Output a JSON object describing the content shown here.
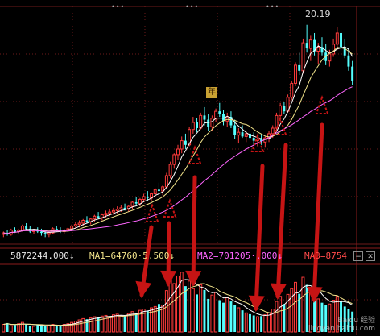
{
  "chart_data": {
    "type": "candlestick",
    "title": "",
    "price_high_label": "20.19",
    "info_bar": {
      "volume": "5872244.000↓",
      "ma1": "MA1=64760·5.500↓",
      "ma2": "MA2=701205·.000↓",
      "ma3": "MA3=8754"
    },
    "badge": "年",
    "price_range": [
      4.5,
      21.5
    ],
    "volume_range": [
      0,
      10000000
    ],
    "candles": [
      [
        5.2,
        5.4,
        5.0,
        5.3
      ],
      [
        5.3,
        5.5,
        5.1,
        5.2
      ],
      [
        5.2,
        5.6,
        5.1,
        5.5
      ],
      [
        5.5,
        5.7,
        5.3,
        5.4
      ],
      [
        5.4,
        5.6,
        5.2,
        5.5
      ],
      [
        5.5,
        5.9,
        5.4,
        5.8
      ],
      [
        5.8,
        6.0,
        5.5,
        5.6
      ],
      [
        5.6,
        5.8,
        5.3,
        5.4
      ],
      [
        5.4,
        5.6,
        5.2,
        5.5
      ],
      [
        5.5,
        5.7,
        5.3,
        5.4
      ],
      [
        5.4,
        5.6,
        5.1,
        5.3
      ],
      [
        5.3,
        5.5,
        5.0,
        5.2
      ],
      [
        5.2,
        5.4,
        5.0,
        5.3
      ],
      [
        5.3,
        5.7,
        5.2,
        5.6
      ],
      [
        5.6,
        5.8,
        5.4,
        5.5
      ],
      [
        5.5,
        5.7,
        5.3,
        5.4
      ],
      [
        5.4,
        5.6,
        5.2,
        5.5
      ],
      [
        5.5,
        5.7,
        5.4,
        5.6
      ],
      [
        5.6,
        5.9,
        5.5,
        5.8
      ],
      [
        5.8,
        6.1,
        5.6,
        5.9
      ],
      [
        5.9,
        6.2,
        5.7,
        6.0
      ],
      [
        6.0,
        6.3,
        5.8,
        6.2
      ],
      [
        6.2,
        6.5,
        6.0,
        6.1
      ],
      [
        6.1,
        6.4,
        5.9,
        6.3
      ],
      [
        6.3,
        6.6,
        6.1,
        6.5
      ],
      [
        6.5,
        6.8,
        6.3,
        6.4
      ],
      [
        6.4,
        6.7,
        6.2,
        6.6
      ],
      [
        6.6,
        6.9,
        6.4,
        6.7
      ],
      [
        6.7,
        7.0,
        6.5,
        6.8
      ],
      [
        6.8,
        7.1,
        6.6,
        6.9
      ],
      [
        6.9,
        7.2,
        6.7,
        7.0
      ],
      [
        7.0,
        7.3,
        6.8,
        7.1
      ],
      [
        7.1,
        7.4,
        6.9,
        7.0
      ],
      [
        7.0,
        7.3,
        6.8,
        7.2
      ],
      [
        7.2,
        7.6,
        7.0,
        7.5
      ],
      [
        7.5,
        7.9,
        7.3,
        7.4
      ],
      [
        7.4,
        7.8,
        7.2,
        7.7
      ],
      [
        7.7,
        8.1,
        7.5,
        7.9
      ],
      [
        7.9,
        8.3,
        7.6,
        7.8
      ],
      [
        7.8,
        8.2,
        7.6,
        8.1
      ],
      [
        8.1,
        8.5,
        7.9,
        8.4
      ],
      [
        8.4,
        8.9,
        8.2,
        8.3
      ],
      [
        8.3,
        8.7,
        8.0,
        8.6
      ],
      [
        8.6,
        9.6,
        8.5,
        9.4
      ],
      [
        9.4,
        10.4,
        9.2,
        10.2
      ],
      [
        10.2,
        11.0,
        9.9,
        10.9
      ],
      [
        10.9,
        11.6,
        10.5,
        11.3
      ],
      [
        11.3,
        12.2,
        11.0,
        11.9
      ],
      [
        11.9,
        12.4,
        11.3,
        11.6
      ],
      [
        11.6,
        12.9,
        11.5,
        12.7
      ],
      [
        12.7,
        13.6,
        12.4,
        13.2
      ],
      [
        13.2,
        13.5,
        12.5,
        12.8
      ],
      [
        12.8,
        13.9,
        12.7,
        13.7
      ],
      [
        13.7,
        14.3,
        13.0,
        13.4
      ],
      [
        13.4,
        13.8,
        12.6,
        12.9
      ],
      [
        12.9,
        13.7,
        12.6,
        13.5
      ],
      [
        13.5,
        14.2,
        13.2,
        14.0
      ],
      [
        14.0,
        14.6,
        13.6,
        13.8
      ],
      [
        13.8,
        14.1,
        13.0,
        13.3
      ],
      [
        13.3,
        13.9,
        12.9,
        13.6
      ],
      [
        13.6,
        14.0,
        12.8,
        13.0
      ],
      [
        13.0,
        13.4,
        12.0,
        12.3
      ],
      [
        12.3,
        12.8,
        11.7,
        12.5
      ],
      [
        12.5,
        13.0,
        12.1,
        12.2
      ],
      [
        12.2,
        12.6,
        11.8,
        12.4
      ],
      [
        12.4,
        12.7,
        11.9,
        12.1
      ],
      [
        12.1,
        12.5,
        11.6,
        11.9
      ],
      [
        11.9,
        12.3,
        11.5,
        12.0
      ],
      [
        12.0,
        12.4,
        11.6,
        11.8
      ],
      [
        11.8,
        12.2,
        11.4,
        12.1
      ],
      [
        12.1,
        12.6,
        11.8,
        12.4
      ],
      [
        12.4,
        13.0,
        12.1,
        12.8
      ],
      [
        12.8,
        13.9,
        12.6,
        13.7
      ],
      [
        13.7,
        14.6,
        13.3,
        14.4
      ],
      [
        14.4,
        14.7,
        13.8,
        14.0
      ],
      [
        14.0,
        15.2,
        13.9,
        15.0
      ],
      [
        15.0,
        16.2,
        14.8,
        16.0
      ],
      [
        16.0,
        17.5,
        15.8,
        17.3
      ],
      [
        17.3,
        18.2,
        16.6,
        16.9
      ],
      [
        16.9,
        19.2,
        16.7,
        18.9
      ],
      [
        18.9,
        20.19,
        18.2,
        18.5
      ],
      [
        18.5,
        19.4,
        17.6,
        19.1
      ],
      [
        19.1,
        19.6,
        18.0,
        18.3
      ],
      [
        18.3,
        18.9,
        17.4,
        18.6
      ],
      [
        18.6,
        19.3,
        18.0,
        18.2
      ],
      [
        18.2,
        18.8,
        17.3,
        17.6
      ],
      [
        17.6,
        18.4,
        17.2,
        18.1
      ],
      [
        18.1,
        19.2,
        17.9,
        18.8
      ],
      [
        18.8,
        20.0,
        18.4,
        19.6
      ],
      [
        19.6,
        19.8,
        18.3,
        18.6
      ],
      [
        18.6,
        19.2,
        17.8,
        18.0
      ],
      [
        18.0,
        18.5,
        16.9,
        17.2
      ],
      [
        17.2,
        17.6,
        15.9,
        16.2
      ]
    ],
    "volumes": [
      1.2,
      1.4,
      1.0,
      1.1,
      1.3,
      1.5,
      1.2,
      1.0,
      0.9,
      1.1,
      1.0,
      0.9,
      1.0,
      1.2,
      1.1,
      1.0,
      1.2,
      1.3,
      1.5,
      1.7,
      1.9,
      2.1,
      2.0,
      2.2,
      2.4,
      2.3,
      2.5,
      2.6,
      2.4,
      2.7,
      2.8,
      2.6,
      2.5,
      2.9,
      3.2,
      3.0,
      3.4,
      3.6,
      3.3,
      3.8,
      4.0,
      4.4,
      4.2,
      6.5,
      8.2,
      7.6,
      8.8,
      9.4,
      7.2,
      8.0,
      6.8,
      5.9,
      7.4,
      6.6,
      5.2,
      5.8,
      6.2,
      5.0,
      4.6,
      5.4,
      4.8,
      4.2,
      3.8,
      3.4,
      3.0,
      2.8,
      2.6,
      2.4,
      2.5,
      2.7,
      3.0,
      3.6,
      4.8,
      5.6,
      4.4,
      5.9,
      6.8,
      7.8,
      6.0,
      8.6,
      7.4,
      6.6,
      5.8,
      5.2,
      4.6,
      4.2,
      4.4,
      5.0,
      5.6,
      4.8,
      4.0,
      3.6,
      3.2
    ]
  }
}
